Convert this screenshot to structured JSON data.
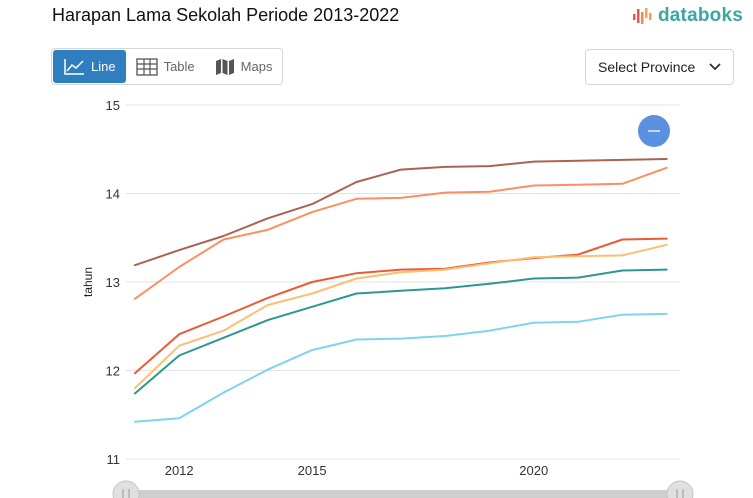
{
  "title": "Harapan Lama Sekolah Periode 2013-2022",
  "brand": {
    "name": "databoks",
    "logo_icon": "bar-signal-icon",
    "color": "#3aa6a6"
  },
  "tabs": [
    {
      "label": "Line",
      "icon": "line-chart-icon",
      "active": true
    },
    {
      "label": "Table",
      "icon": "table-grid-icon",
      "active": false
    },
    {
      "label": "Maps",
      "icon": "map-icon",
      "active": false
    }
  ],
  "province_select": {
    "label": "Select Province",
    "icon": "chevron-down-icon"
  },
  "zoom_button_icon": "minus-icon",
  "chart_data": {
    "type": "line",
    "title": "",
    "xlabel": "",
    "ylabel": "tahun",
    "ylim": [
      11,
      15
    ],
    "yticks": [
      11,
      12,
      13,
      14,
      15
    ],
    "xlim": [
      2010.8,
      2023.3
    ],
    "xticks": [
      "2012",
      "2015",
      "2020"
    ],
    "grid": true,
    "legend": "none",
    "x": [
      2011,
      2012,
      2013,
      2014,
      2015,
      2016,
      2017,
      2018,
      2019,
      2020,
      2021,
      2022,
      2023
    ],
    "series": [
      {
        "color": "#a9634f",
        "values": [
          13.19,
          13.36,
          13.52,
          13.72,
          13.88,
          14.13,
          14.27,
          14.3,
          14.31,
          14.36,
          14.37,
          14.38,
          14.39
        ]
      },
      {
        "color": "#fb8f62",
        "values": [
          12.81,
          13.17,
          13.48,
          13.59,
          13.79,
          13.94,
          13.95,
          14.01,
          14.02,
          14.09,
          14.1,
          14.11,
          14.29
        ]
      },
      {
        "color": "#ea5b34",
        "values": [
          11.97,
          12.41,
          12.61,
          12.82,
          13.0,
          13.1,
          13.14,
          13.15,
          13.22,
          13.27,
          13.31,
          13.48,
          13.49
        ]
      },
      {
        "color": "#fbbf72",
        "values": [
          11.8,
          12.28,
          12.45,
          12.74,
          12.87,
          13.04,
          13.11,
          13.14,
          13.21,
          13.28,
          13.29,
          13.3,
          13.42
        ]
      },
      {
        "color": "#2e9693",
        "values": [
          11.74,
          12.17,
          12.37,
          12.57,
          12.72,
          12.87,
          12.9,
          12.93,
          12.98,
          13.04,
          13.05,
          13.13,
          13.14
        ]
      },
      {
        "color": "#7fd3ee",
        "values": [
          11.42,
          11.46,
          11.75,
          12.01,
          12.23,
          12.35,
          12.36,
          12.39,
          12.45,
          12.54,
          12.55,
          12.63,
          12.64
        ]
      }
    ]
  }
}
